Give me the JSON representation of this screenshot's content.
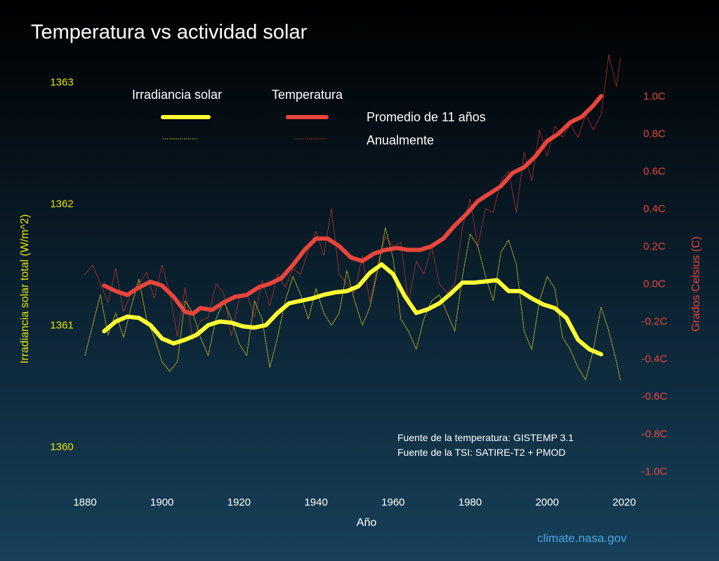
{
  "chart_data": {
    "type": "line",
    "title": "Temperatura vs actividad solar",
    "xlabel": "Año",
    "ylabel_left": "Irradiancia solar total (W/m^2)",
    "ylabel_right": "Grados Celsius (C)",
    "xlim": [
      1880,
      2020
    ],
    "ylim_left": [
      1359.9,
      1363.2
    ],
    "ylim_right": [
      -1.0,
      1.0
    ],
    "x_ticks": [
      "1880",
      "1900",
      "1920",
      "1940",
      "1960",
      "1980",
      "2000",
      "2020"
    ],
    "left_ticks": [
      {
        "value": 1363,
        "label": "1363"
      },
      {
        "value": 1362,
        "label": "1362"
      },
      {
        "value": 1361,
        "label": "1361"
      },
      {
        "value": 1360,
        "label": "1360"
      }
    ],
    "right_ticks": [
      {
        "value": 1.0,
        "label": "1.0C"
      },
      {
        "value": 0.8,
        "label": "0.8C"
      },
      {
        "value": 0.6,
        "label": "0.6C"
      },
      {
        "value": 0.4,
        "label": "0.4C"
      },
      {
        "value": 0.2,
        "label": "0.2C"
      },
      {
        "value": 0.0,
        "label": "0.0C"
      },
      {
        "value": -0.2,
        "label": "-0.2C"
      },
      {
        "value": -0.4,
        "label": "-0.4C"
      },
      {
        "value": -0.6,
        "label": "-0.6C"
      },
      {
        "value": -0.8,
        "label": "-0.8C"
      },
      {
        "value": -1.0,
        "label": "-1.0C"
      }
    ],
    "legend": {
      "head_solar": "Irradiancia solar",
      "head_temp": "Temperatura",
      "row_avg": "Promedio de 11 años",
      "row_annual": "Anualmente"
    },
    "series": [
      {
        "name": "Temperatura — Promedio de 11 años",
        "axis": "right",
        "color": "#e8453c",
        "style": "thick",
        "x": [
          1885,
          1888,
          1891,
          1894,
          1897,
          1900,
          1903,
          1906,
          1908,
          1910,
          1913,
          1916,
          1919,
          1922,
          1925,
          1928,
          1931,
          1934,
          1937,
          1940,
          1943,
          1946,
          1949,
          1952,
          1955,
          1958,
          1961,
          1964,
          1967,
          1970,
          1973,
          1976,
          1979,
          1982,
          1985,
          1988,
          1991,
          1994,
          1997,
          2000,
          2003,
          2006,
          2009,
          2012,
          2014
        ],
        "y": [
          -0.01,
          -0.04,
          -0.06,
          -0.02,
          0.01,
          -0.01,
          -0.07,
          -0.15,
          -0.16,
          -0.13,
          -0.14,
          -0.1,
          -0.07,
          -0.06,
          -0.02,
          0.0,
          0.03,
          0.1,
          0.18,
          0.24,
          0.24,
          0.2,
          0.14,
          0.12,
          0.16,
          0.18,
          0.19,
          0.18,
          0.18,
          0.2,
          0.24,
          0.31,
          0.37,
          0.44,
          0.48,
          0.52,
          0.59,
          0.62,
          0.68,
          0.76,
          0.8,
          0.86,
          0.89,
          0.95,
          1.0
        ]
      },
      {
        "name": "Temperatura — Anualmente",
        "axis": "right",
        "color": "#d2372f",
        "style": "dotted",
        "x": [
          1880,
          1882,
          1884,
          1886,
          1888,
          1890,
          1892,
          1894,
          1896,
          1898,
          1900,
          1902,
          1904,
          1906,
          1908,
          1910,
          1912,
          1914,
          1916,
          1918,
          1920,
          1922,
          1924,
          1926,
          1928,
          1930,
          1932,
          1934,
          1936,
          1938,
          1940,
          1942,
          1944,
          1946,
          1948,
          1950,
          1952,
          1954,
          1956,
          1958,
          1960,
          1962,
          1964,
          1966,
          1968,
          1970,
          1972,
          1974,
          1976,
          1978,
          1980,
          1982,
          1984,
          1986,
          1988,
          1990,
          1992,
          1994,
          1996,
          1998,
          2000,
          2002,
          2004,
          2006,
          2008,
          2010,
          2012,
          2014,
          2016,
          2018,
          2019
        ],
        "y": [
          0.05,
          0.1,
          0.0,
          -0.1,
          0.08,
          -0.15,
          -0.05,
          0.0,
          0.06,
          -0.08,
          0.1,
          -0.05,
          -0.28,
          -0.02,
          -0.3,
          -0.2,
          -0.18,
          0.0,
          -0.05,
          -0.28,
          -0.08,
          -0.05,
          -0.18,
          0.02,
          -0.12,
          0.05,
          -0.02,
          0.08,
          0.05,
          0.18,
          0.28,
          0.15,
          0.4,
          0.05,
          0.0,
          -0.05,
          0.15,
          -0.1,
          0.1,
          0.25,
          0.2,
          0.22,
          -0.1,
          0.12,
          0.05,
          0.2,
          0.0,
          -0.05,
          0.0,
          0.3,
          0.45,
          0.2,
          0.4,
          0.38,
          0.55,
          0.6,
          0.38,
          0.7,
          0.55,
          0.82,
          0.68,
          0.84,
          0.78,
          0.85,
          0.78,
          0.9,
          0.82,
          0.9,
          1.22,
          1.05,
          1.2
        ]
      },
      {
        "name": "Irradiancia solar — Promedio de 11 años",
        "axis": "left",
        "color": "#ffff33",
        "style": "thick",
        "x": [
          1885,
          1888,
          1891,
          1894,
          1897,
          1900,
          1903,
          1906,
          1909,
          1912,
          1915,
          1918,
          1921,
          1924,
          1927,
          1930,
          1933,
          1936,
          1939,
          1942,
          1945,
          1948,
          1951,
          1954,
          1957,
          1960,
          1963,
          1966,
          1969,
          1972,
          1975,
          1978,
          1981,
          1984,
          1987,
          1990,
          1993,
          1996,
          1999,
          2002,
          2005,
          2008,
          2011,
          2014
        ],
        "y": [
          1360.95,
          1361.03,
          1361.07,
          1361.06,
          1361.0,
          1360.89,
          1360.85,
          1360.88,
          1360.92,
          1361.0,
          1361.03,
          1361.02,
          1360.99,
          1360.98,
          1361.0,
          1361.1,
          1361.18,
          1361.2,
          1361.22,
          1361.25,
          1361.27,
          1361.28,
          1361.32,
          1361.43,
          1361.5,
          1361.42,
          1361.24,
          1361.1,
          1361.13,
          1361.18,
          1361.26,
          1361.35,
          1361.35,
          1361.36,
          1361.37,
          1361.28,
          1361.28,
          1361.22,
          1361.17,
          1361.14,
          1361.06,
          1360.88,
          1360.8,
          1360.76
        ]
      },
      {
        "name": "Irradiancia solar — Anualmente",
        "axis": "left",
        "color": "#d8d820",
        "style": "dotted",
        "x": [
          1880,
          1882,
          1884,
          1886,
          1888,
          1890,
          1892,
          1894,
          1896,
          1898,
          1900,
          1902,
          1904,
          1906,
          1908,
          1910,
          1912,
          1914,
          1916,
          1918,
          1920,
          1922,
          1924,
          1926,
          1928,
          1930,
          1932,
          1934,
          1936,
          1938,
          1940,
          1942,
          1944,
          1946,
          1948,
          1950,
          1952,
          1954,
          1956,
          1958,
          1960,
          1962,
          1964,
          1966,
          1968,
          1970,
          1972,
          1974,
          1976,
          1978,
          1980,
          1982,
          1984,
          1986,
          1988,
          1990,
          1992,
          1994,
          1996,
          1998,
          2000,
          2002,
          2004,
          2006,
          2008,
          2010,
          2012,
          2014,
          2016,
          2018,
          2019
        ],
        "y": [
          1360.75,
          1361.0,
          1361.25,
          1360.92,
          1361.1,
          1360.9,
          1361.15,
          1361.38,
          1361.05,
          1360.9,
          1360.7,
          1360.62,
          1360.7,
          1361.2,
          1361.1,
          1360.9,
          1360.75,
          1361.05,
          1361.2,
          1361.05,
          1360.85,
          1360.75,
          1361.2,
          1361.05,
          1360.65,
          1360.9,
          1361.2,
          1361.4,
          1361.25,
          1361.05,
          1361.3,
          1361.1,
          1361.0,
          1361.1,
          1361.45,
          1361.2,
          1361.0,
          1361.15,
          1361.45,
          1361.8,
          1361.55,
          1361.05,
          1360.95,
          1360.8,
          1361.05,
          1361.2,
          1361.25,
          1361.1,
          1360.95,
          1361.4,
          1361.75,
          1361.65,
          1361.4,
          1361.2,
          1361.6,
          1361.7,
          1361.5,
          1360.95,
          1360.8,
          1361.2,
          1361.4,
          1361.3,
          1360.9,
          1360.8,
          1360.65,
          1360.55,
          1360.8,
          1361.15,
          1360.95,
          1360.7,
          1360.55
        ]
      }
    ]
  },
  "sources": {
    "temperature": "Fuente de la temperatura: GISTEMP 3.1",
    "tsi": "Fuente de la TSI: SATIRE-T2 + PMOD"
  },
  "credit": "climate.nasa.gov"
}
